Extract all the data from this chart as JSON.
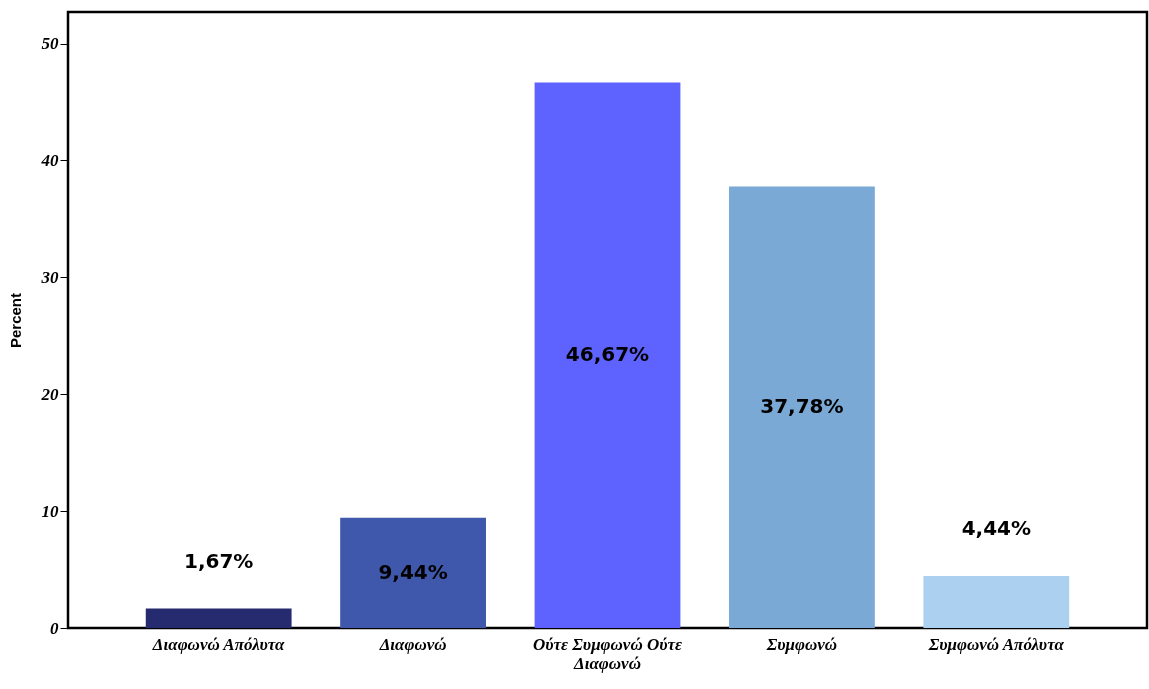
{
  "chart_data": {
    "type": "bar",
    "ylabel": "Percent",
    "categories": [
      "Διαφωνώ Απόλυτα",
      "Διαφωνώ",
      "Ούτε Συμφωνώ Ούτε Διαφωνώ",
      "Συμφωνώ",
      "Συμφωνώ Απόλυτα"
    ],
    "values": [
      1.67,
      9.44,
      46.67,
      37.78,
      4.44
    ],
    "colors": [
      "#262a6e",
      "#3f58ab",
      "#5e62fe",
      "#7aa9d6",
      "#acd0f0"
    ],
    "value_labels": [
      "1,67%",
      "9,44%",
      "46,67%",
      "37,78%",
      "4,44%"
    ],
    "ylim": [
      0,
      52.7
    ],
    "yticks": [
      0,
      10,
      20,
      30,
      40,
      50
    ],
    "grid": false
  }
}
